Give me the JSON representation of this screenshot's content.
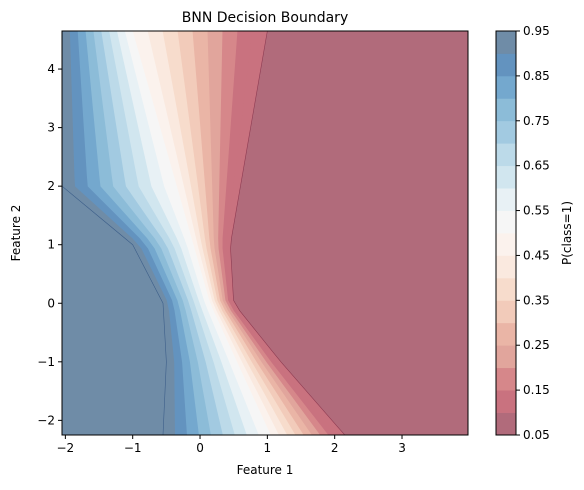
{
  "chart_data": {
    "type": "heatmap",
    "subtype": "filled-contour",
    "title": "BNN Decision Boundary",
    "xlabel": "Feature 1",
    "ylabel": "Feature 2",
    "xlim": [
      -2.05,
      3.98
    ],
    "ylim": [
      -2.25,
      4.65
    ],
    "xticks": [
      -2,
      -1,
      0,
      1,
      2,
      3
    ],
    "xtick_labels": [
      "−2",
      "−1",
      "0",
      "1",
      "2",
      "3"
    ],
    "yticks": [
      -2,
      -1,
      0,
      1,
      2,
      3,
      4
    ],
    "ytick_labels": [
      "−2",
      "−1",
      "0",
      "1",
      "2",
      "3",
      "4"
    ],
    "colormap": "RdBu (reversed for class 1 = blue), alpha 0.6",
    "contour_levels": [
      0.05,
      0.1,
      0.15,
      0.2,
      0.25,
      0.3,
      0.35,
      0.4,
      0.45,
      0.5,
      0.55,
      0.6,
      0.65,
      0.7,
      0.75,
      0.8,
      0.85,
      0.9,
      0.95
    ],
    "level_colors": [
      "#b16b7b",
      "#c9727f",
      "#d6878a",
      "#e1a59c",
      "#eab5a6",
      "#f2cbba",
      "#f7dccc",
      "#fae9df",
      "#fbf2ed",
      "#f6f6f6",
      "#e8f1f5",
      "#d1e6ef",
      "#bcdae9",
      "#a2cae1",
      "#8cbcd8",
      "#74a8ce",
      "#6393bf",
      "#6f8ca7"
    ],
    "boundary": {
      "p50_passes_through": [
        [
          -1.0,
          4.65
        ],
        [
          0.15,
          0.0
        ],
        [
          1.05,
          -2.25
        ]
      ],
      "p05_edge_on_red_side": [
        [
          1.0,
          4.65
        ],
        [
          0.45,
          1.0
        ],
        [
          0.5,
          0.0
        ],
        [
          1.2,
          -1.0
        ],
        [
          2.15,
          -2.25
        ]
      ],
      "p95_edge_on_blue_side": [
        [
          -2.05,
          2.0
        ],
        [
          -1.0,
          1.0
        ],
        [
          -0.55,
          0.0
        ],
        [
          -0.5,
          -1.0
        ],
        [
          -0.55,
          -2.25
        ]
      ]
    },
    "colorbar": {
      "label": "P(class=1)",
      "ticks": [
        0.05,
        0.15,
        0.25,
        0.35,
        0.45,
        0.55,
        0.65,
        0.75,
        0.85,
        0.95
      ],
      "tick_labels": [
        "0.05",
        "0.15",
        "0.25",
        "0.35",
        "0.45",
        "0.55",
        "0.65",
        "0.75",
        "0.85",
        "0.95"
      ],
      "range": [
        0.05,
        0.95
      ]
    },
    "grid": false
  }
}
